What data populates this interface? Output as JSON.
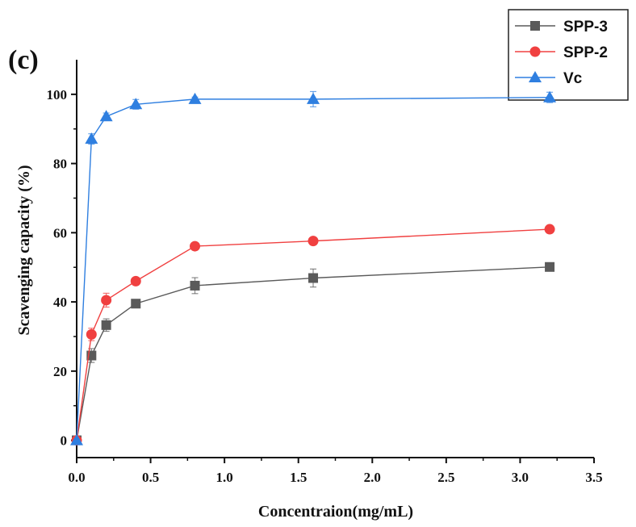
{
  "chart_data": {
    "type": "line",
    "panel_label": "(c)",
    "xlabel": "Concentraion(mg/mL)",
    "ylabel": "Scavenging capacity (%)",
    "xlim": [
      0.0,
      3.5
    ],
    "ylim": [
      -5,
      110
    ],
    "x_ticks": [
      0.0,
      0.5,
      1.0,
      1.5,
      2.0,
      2.5,
      3.0,
      3.5
    ],
    "x_tick_labels": [
      "0.0",
      "0.5",
      "1.0",
      "1.5",
      "2.0",
      "2.5",
      "3.0",
      "3.5"
    ],
    "y_ticks": [
      0,
      20,
      40,
      60,
      80,
      100
    ],
    "y_tick_labels": [
      "0",
      "20",
      "40",
      "60",
      "80",
      "100"
    ],
    "grid": false,
    "legend_position": "top-right",
    "x": [
      0.0,
      0.1,
      0.2,
      0.4,
      0.8,
      1.6,
      3.2
    ],
    "series": [
      {
        "name": "SPP-3",
        "color": "#5a5a5a",
        "marker": "square",
        "values": [
          0,
          24.5,
          33.3,
          39.5,
          44.7,
          46.9,
          50.1
        ],
        "errors": [
          0,
          2.0,
          1.8,
          0.8,
          2.3,
          2.6,
          0.6
        ]
      },
      {
        "name": "SPP-2",
        "color": "#f04040",
        "marker": "circle",
        "values": [
          0,
          30.6,
          40.5,
          46.0,
          56.1,
          57.6,
          61.0
        ],
        "errors": [
          0,
          1.8,
          2.0,
          0.8,
          0.9,
          0.7,
          0.6
        ]
      },
      {
        "name": "Vc",
        "color": "#2f7fe0",
        "marker": "triangle",
        "values": [
          0,
          87.1,
          93.6,
          97.1,
          98.6,
          98.6,
          99.1
        ],
        "errors": [
          0,
          1.5,
          1.0,
          1.4,
          0.6,
          2.2,
          1.5
        ]
      }
    ]
  }
}
